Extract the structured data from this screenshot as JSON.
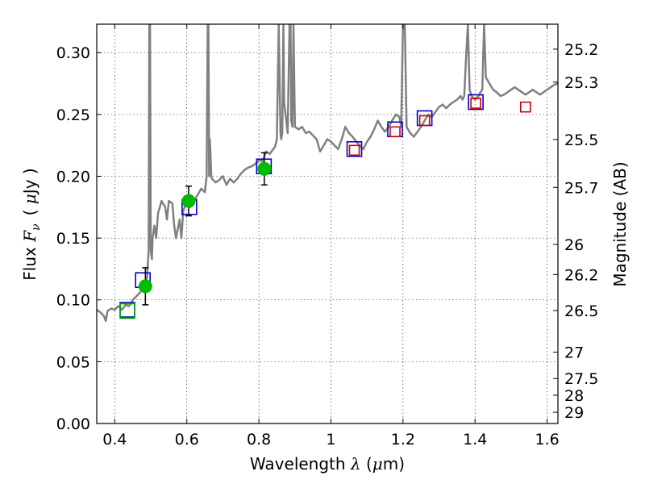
{
  "chart_data": {
    "type": "scatter",
    "xlabel": "Wavelength  λ (μm)",
    "ylabel": "Flux  F_ν  ( μJy )",
    "ylabel_parts": {
      "prefix": "Flux ",
      "symbol": "F",
      "subscript": "ν",
      "unit_open": "( ",
      "unit_mu": "μ",
      "unit_rest": "Jy )"
    },
    "xlabel_parts": {
      "prefix": "Wavelength  ",
      "symbol": "λ",
      "unit_open": " (",
      "unit_mu": "μ",
      "unit_rest": "m)"
    },
    "ylabel_right": "Magnitude (AB)",
    "xlim": [
      0.35,
      1.63
    ],
    "ylim": [
      0.0,
      0.323
    ],
    "grid": true,
    "x_ticks": [
      0.4,
      0.6,
      0.8,
      1.0,
      1.2,
      1.4,
      1.6
    ],
    "x_tick_labels": [
      "0.4",
      "0.6",
      "0.8",
      "1",
      "1.2",
      "1.4",
      "1.6"
    ],
    "y_ticks": [
      0.0,
      0.05,
      0.1,
      0.15,
      0.2,
      0.25,
      0.3
    ],
    "y_tick_labels": [
      "0.00",
      "0.05",
      "0.10",
      "0.15",
      "0.20",
      "0.25",
      "0.30"
    ],
    "right_ticks": [
      {
        "label": "25.2",
        "flux": 0.3028
      },
      {
        "label": "25.3",
        "flux": 0.2761
      },
      {
        "label": "25.5",
        "flux": 0.2297
      },
      {
        "label": "25.7",
        "flux": 0.191
      },
      {
        "label": "26",
        "flux": 0.1449
      },
      {
        "label": "26.2",
        "flux": 0.1205
      },
      {
        "label": "26.5",
        "flux": 0.0914
      },
      {
        "label": "27",
        "flux": 0.0577
      },
      {
        "label": "27.5",
        "flux": 0.0364
      },
      {
        "label": "28",
        "flux": 0.0229
      },
      {
        "label": "29",
        "flux": 0.0091
      }
    ],
    "series": [
      {
        "name": "model spectrum",
        "kind": "line",
        "color": "#808080",
        "x": [
          0.35,
          0.36,
          0.37,
          0.375,
          0.38,
          0.39,
          0.4,
          0.41,
          0.42,
          0.43,
          0.44,
          0.45,
          0.46,
          0.47,
          0.48,
          0.485,
          0.49,
          0.494,
          0.496,
          0.498,
          0.5,
          0.503,
          0.505,
          0.51,
          0.515,
          0.52,
          0.53,
          0.54,
          0.545,
          0.55,
          0.56,
          0.565,
          0.57,
          0.58,
          0.585,
          0.59,
          0.6,
          0.61,
          0.62,
          0.63,
          0.64,
          0.65,
          0.655,
          0.658,
          0.66,
          0.662,
          0.664,
          0.668,
          0.67,
          0.68,
          0.69,
          0.7,
          0.71,
          0.72,
          0.73,
          0.74,
          0.75,
          0.76,
          0.77,
          0.78,
          0.79,
          0.8,
          0.81,
          0.82,
          0.83,
          0.84,
          0.845,
          0.85,
          0.855,
          0.86,
          0.862,
          0.865,
          0.868,
          0.87,
          0.88,
          0.885,
          0.888,
          0.89,
          0.893,
          0.896,
          0.9,
          0.91,
          0.92,
          0.93,
          0.94,
          0.95,
          0.96,
          0.97,
          0.98,
          0.99,
          1.0,
          1.01,
          1.02,
          1.03,
          1.04,
          1.05,
          1.06,
          1.07,
          1.08,
          1.09,
          1.1,
          1.11,
          1.12,
          1.13,
          1.14,
          1.15,
          1.16,
          1.17,
          1.18,
          1.19,
          1.195,
          1.2,
          1.205,
          1.21,
          1.22,
          1.23,
          1.24,
          1.25,
          1.26,
          1.27,
          1.28,
          1.29,
          1.3,
          1.31,
          1.32,
          1.33,
          1.34,
          1.35,
          1.36,
          1.365,
          1.37,
          1.375,
          1.38,
          1.385,
          1.39,
          1.4,
          1.41,
          1.415,
          1.42,
          1.425,
          1.43,
          1.44,
          1.45,
          1.46,
          1.47,
          1.48,
          1.49,
          1.5,
          1.51,
          1.52,
          1.53,
          1.54,
          1.55,
          1.56,
          1.57,
          1.58,
          1.59,
          1.6,
          1.61,
          1.62,
          1.63
        ],
        "y": [
          0.092,
          0.09,
          0.087,
          0.083,
          0.091,
          0.093,
          0.092,
          0.095,
          0.092,
          0.096,
          0.095,
          0.1,
          0.103,
          0.106,
          0.11,
          0.108,
          0.12,
          0.14,
          0.323,
          0.323,
          0.14,
          0.133,
          0.15,
          0.16,
          0.15,
          0.17,
          0.18,
          0.175,
          0.165,
          0.18,
          0.178,
          0.16,
          0.15,
          0.165,
          0.15,
          0.172,
          0.18,
          0.175,
          0.18,
          0.185,
          0.19,
          0.187,
          0.2,
          0.323,
          0.323,
          0.2,
          0.23,
          0.2,
          0.198,
          0.195,
          0.197,
          0.2,
          0.193,
          0.198,
          0.195,
          0.198,
          0.202,
          0.205,
          0.207,
          0.208,
          0.21,
          0.213,
          0.212,
          0.22,
          0.218,
          0.222,
          0.224,
          0.23,
          0.323,
          0.235,
          0.23,
          0.235,
          0.323,
          0.26,
          0.235,
          0.323,
          0.323,
          0.245,
          0.24,
          0.323,
          0.24,
          0.238,
          0.24,
          0.235,
          0.236,
          0.233,
          0.23,
          0.22,
          0.225,
          0.23,
          0.228,
          0.225,
          0.222,
          0.23,
          0.24,
          0.235,
          0.232,
          0.228,
          0.225,
          0.222,
          0.228,
          0.232,
          0.238,
          0.245,
          0.24,
          0.236,
          0.24,
          0.245,
          0.25,
          0.248,
          0.24,
          0.323,
          0.323,
          0.24,
          0.235,
          0.232,
          0.236,
          0.24,
          0.245,
          0.25,
          0.248,
          0.252,
          0.256,
          0.258,
          0.255,
          0.258,
          0.26,
          0.262,
          0.265,
          0.262,
          0.265,
          0.295,
          0.323,
          0.27,
          0.265,
          0.262,
          0.265,
          0.268,
          0.27,
          0.323,
          0.28,
          0.275,
          0.27,
          0.268,
          0.265,
          0.266,
          0.268,
          0.27,
          0.272,
          0.27,
          0.268,
          0.266,
          0.268,
          0.27,
          0.268,
          0.266,
          0.268,
          0.27,
          0.272,
          0.274,
          0.275
        ]
      },
      {
        "name": "observed optical",
        "kind": "points",
        "color": "#00bb00",
        "x": [
          0.485,
          0.605,
          0.815
        ],
        "y": [
          0.111,
          0.18,
          0.206
        ],
        "yerr": [
          0.015,
          0.012,
          0.013
        ]
      },
      {
        "name": "model photometry (blue)",
        "kind": "squares",
        "color": "#0000cc",
        "x": [
          0.435,
          0.478,
          0.607,
          0.814,
          1.065,
          1.178,
          1.26,
          1.402
        ],
        "y": [
          0.092,
          0.116,
          0.175,
          0.208,
          0.222,
          0.238,
          0.247,
          0.26
        ]
      },
      {
        "name": "model photometry (green)",
        "kind": "squares",
        "color": "#00aa00",
        "x": [
          0.435
        ],
        "y": [
          0.091
        ]
      },
      {
        "name": "observed NIR (red)",
        "kind": "squares",
        "color": "#cc0000",
        "x": [
          1.065,
          1.178,
          1.26,
          1.402,
          1.54
        ],
        "y": [
          0.221,
          0.236,
          0.245,
          0.259,
          0.256
        ]
      }
    ]
  }
}
